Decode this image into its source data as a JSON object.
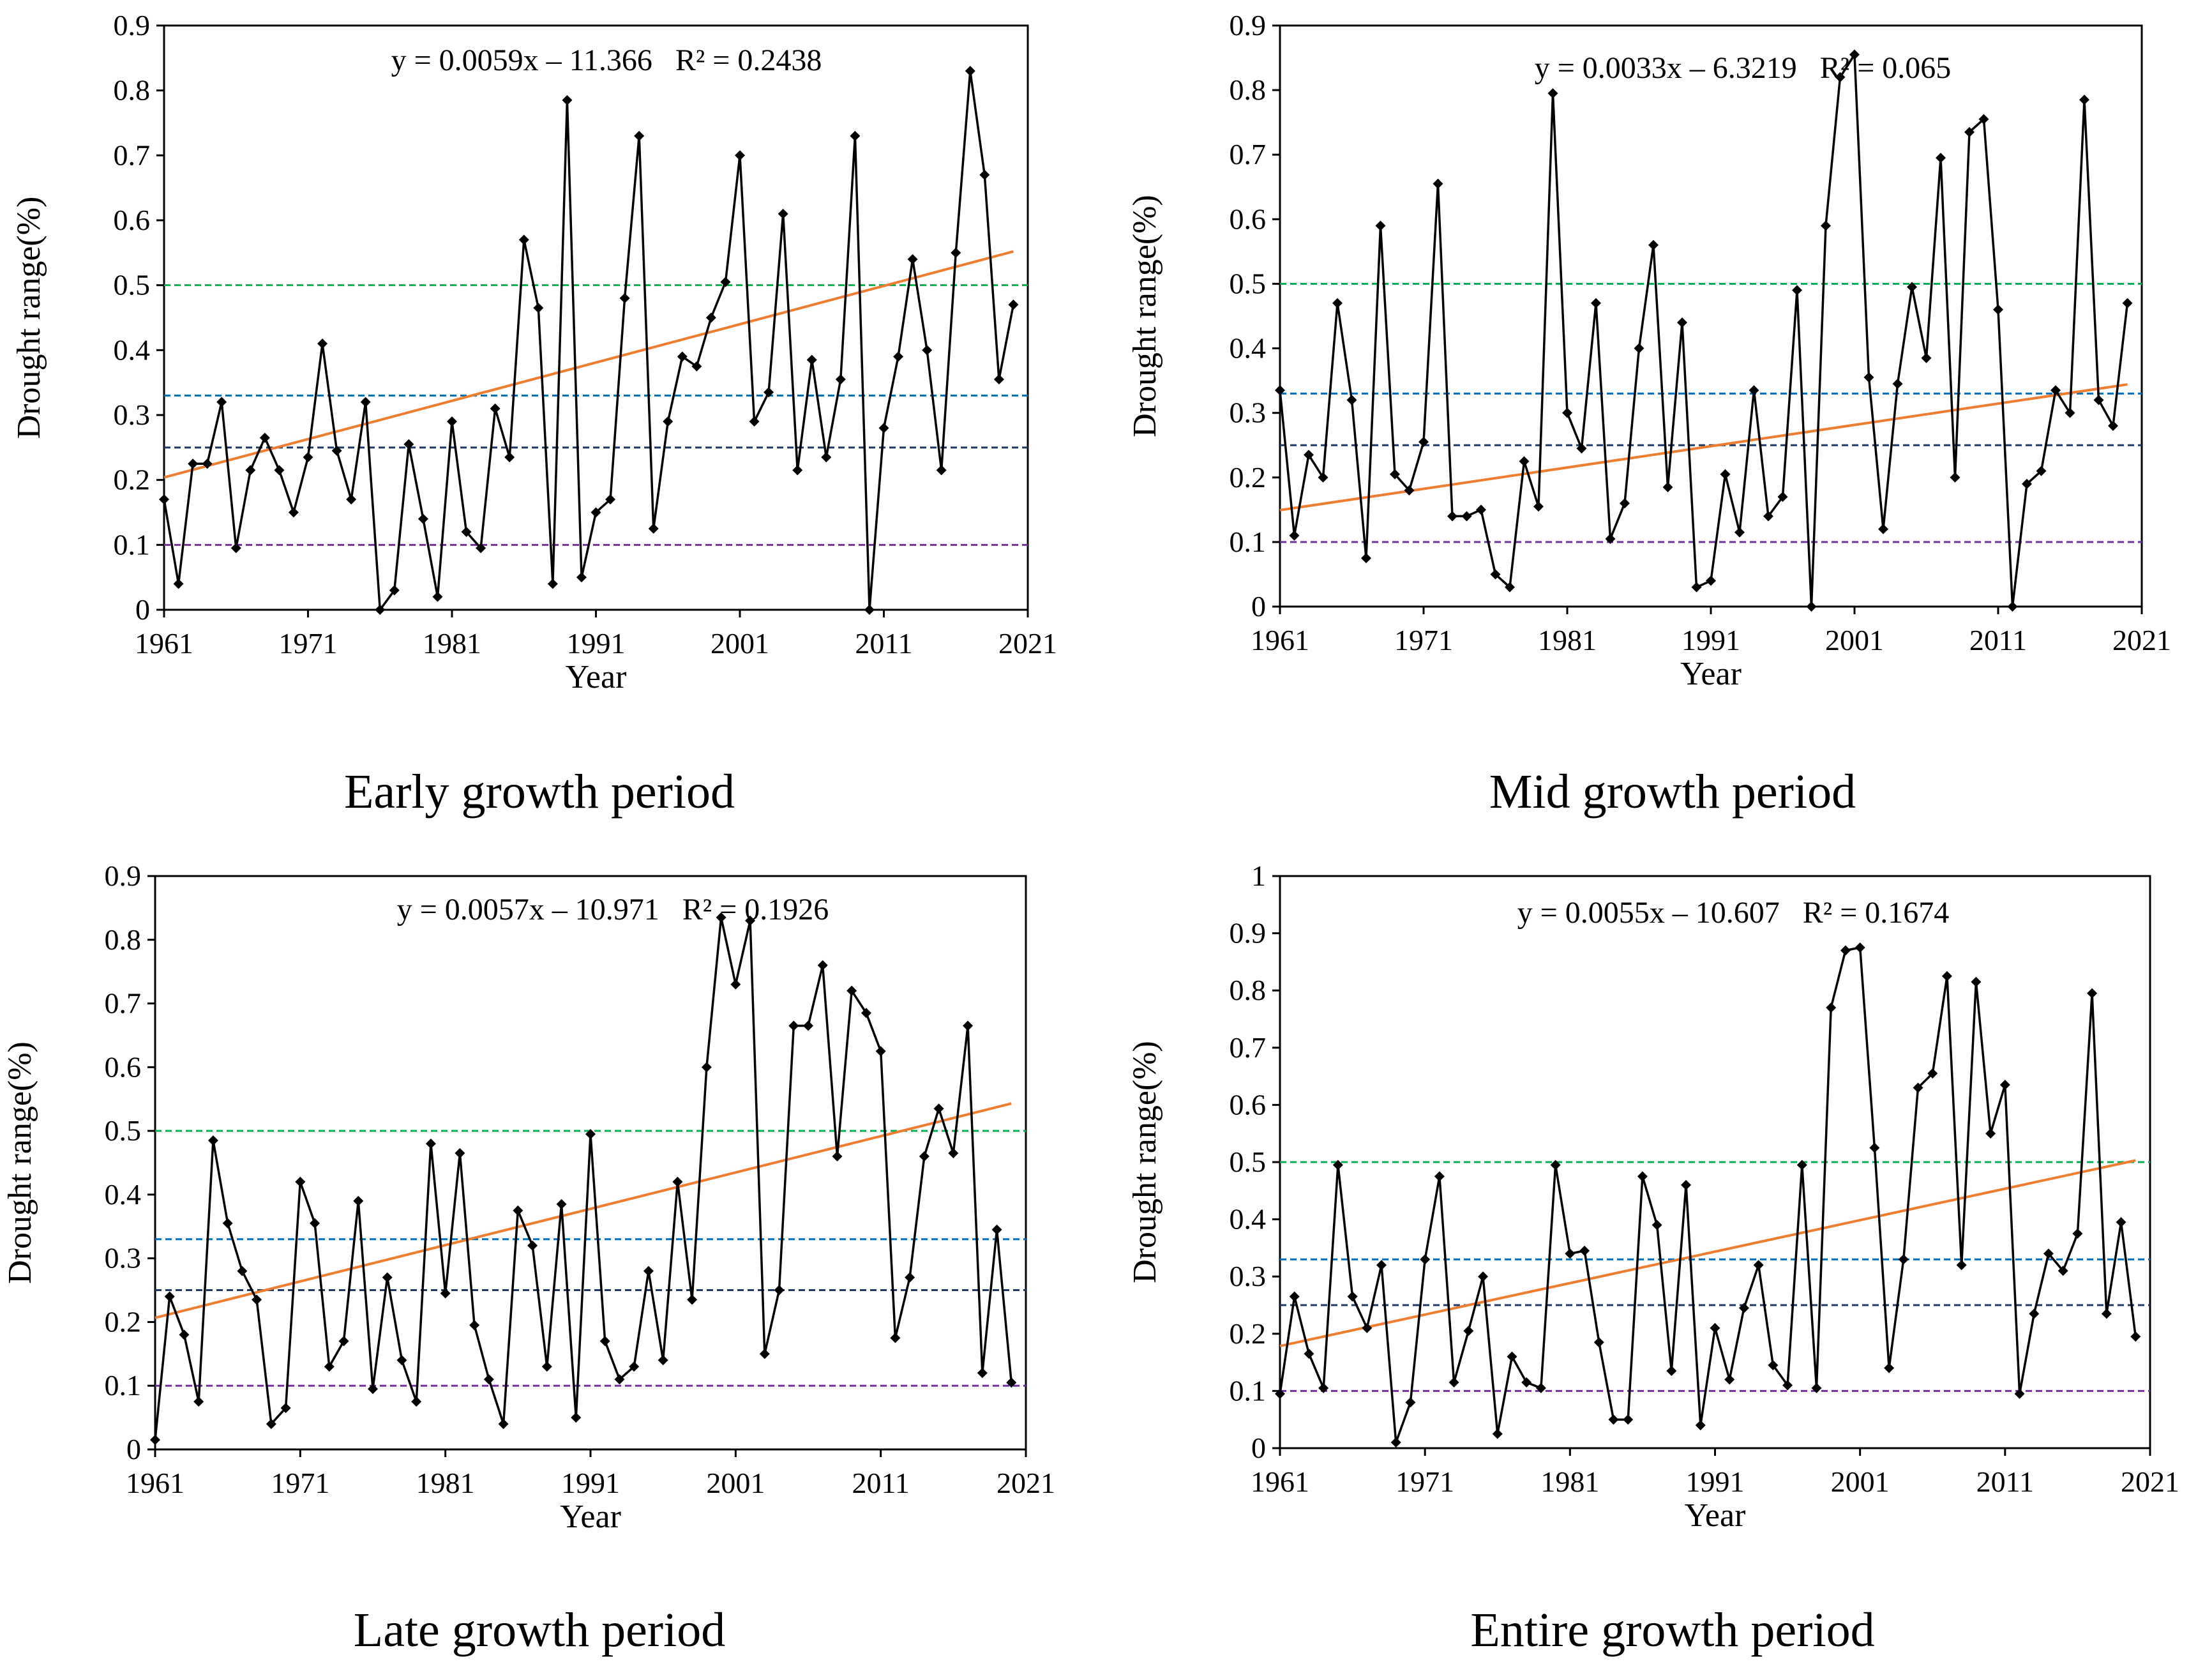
{
  "chart_data": [
    {
      "type": "line",
      "caption": "Early growth period",
      "xlabel": "Year",
      "ylabel": "Drought range(%)",
      "xlim": [
        1961,
        2021
      ],
      "ylim": [
        0,
        0.9
      ],
      "xticks": [
        "1961",
        "1971",
        "1981",
        "1991",
        "2001",
        "2011",
        "2021"
      ],
      "yticks": [
        "0",
        "0.1",
        "0.2",
        "0.3",
        "0.4",
        "0.5",
        "0.6",
        "0.7",
        "0.8",
        "0.9"
      ],
      "equation": "y = 0.0059x – 11.366   R² = 0.2438",
      "series": [
        {
          "name": "Drought range",
          "x_start": 1961,
          "values": [
            0.17,
            0.04,
            0.225,
            0.225,
            0.32,
            0.095,
            0.215,
            0.265,
            0.215,
            0.15,
            0.235,
            0.41,
            0.245,
            0.17,
            0.32,
            0.0,
            0.03,
            0.255,
            0.14,
            0.02,
            0.29,
            0.12,
            0.095,
            0.31,
            0.235,
            0.57,
            0.465,
            0.04,
            0.785,
            0.05,
            0.15,
            0.17,
            0.48,
            0.73,
            0.125,
            0.29,
            0.39,
            0.375,
            0.45,
            0.505,
            0.7,
            0.29,
            0.335,
            0.61,
            0.215,
            0.385,
            0.235,
            0.355,
            0.73,
            0.0,
            0.28,
            0.39,
            0.54,
            0.4,
            0.215,
            0.55,
            0.83,
            0.67,
            0.355,
            0.47
          ]
        }
      ],
      "trendline": {
        "slope": 0.0059,
        "intercept": -11.366
      },
      "reference_lines": [
        {
          "value": 0.5,
          "color": "#00b050"
        },
        {
          "value": 0.33,
          "color": "#0070c0"
        },
        {
          "value": 0.25,
          "color": "#1f3864"
        },
        {
          "value": 0.1,
          "color": "#7030a0"
        }
      ],
      "colors": {
        "series": "#000000",
        "trend": "#ed7d31"
      }
    },
    {
      "type": "line",
      "caption": "Mid growth period",
      "xlabel": "Year",
      "ylabel": "Drought range(%)",
      "xlim": [
        1961,
        2021
      ],
      "ylim": [
        0,
        0.9
      ],
      "xticks": [
        "1961",
        "1971",
        "1981",
        "1991",
        "2001",
        "2011",
        "2021"
      ],
      "yticks": [
        "0",
        "0.1",
        "0.2",
        "0.3",
        "0.4",
        "0.5",
        "0.6",
        "0.7",
        "0.8",
        "0.9"
      ],
      "equation": "y = 0.0033x – 6.3219   R² = 0.065",
      "series": [
        {
          "name": "Drought range",
          "x_start": 1961,
          "values": [
            0.335,
            0.11,
            0.235,
            0.2,
            0.47,
            0.32,
            0.075,
            0.59,
            0.205,
            0.18,
            0.255,
            0.655,
            0.14,
            0.14,
            0.15,
            0.05,
            0.03,
            0.225,
            0.155,
            0.795,
            0.3,
            0.245,
            0.47,
            0.105,
            0.16,
            0.4,
            0.56,
            0.185,
            0.44,
            0.03,
            0.04,
            0.205,
            0.115,
            0.335,
            0.14,
            0.17,
            0.49,
            0.0,
            0.59,
            0.82,
            0.855,
            0.355,
            0.12,
            0.345,
            0.495,
            0.385,
            0.695,
            0.2,
            0.735,
            0.755,
            0.46,
            0.0,
            0.19,
            0.21,
            0.335,
            0.3,
            0.785,
            0.32,
            0.28,
            0.47
          ]
        }
      ],
      "trendline": {
        "slope": 0.0033,
        "intercept": -6.3219
      },
      "reference_lines": [
        {
          "value": 0.5,
          "color": "#00b050"
        },
        {
          "value": 0.33,
          "color": "#0070c0"
        },
        {
          "value": 0.25,
          "color": "#1f3864"
        },
        {
          "value": 0.1,
          "color": "#7030a0"
        }
      ],
      "colors": {
        "series": "#000000",
        "trend": "#ed7d31"
      }
    },
    {
      "type": "line",
      "caption": "Late growth period",
      "xlabel": "Year",
      "ylabel": "Drought range(%)",
      "xlim": [
        1961,
        2021
      ],
      "ylim": [
        0,
        0.9
      ],
      "xticks": [
        "1961",
        "1971",
        "1981",
        "1991",
        "2001",
        "2011",
        "2021"
      ],
      "yticks": [
        "0",
        "0.1",
        "0.2",
        "0.3",
        "0.4",
        "0.5",
        "0.6",
        "0.7",
        "0.8",
        "0.9"
      ],
      "equation": "y = 0.0057x – 10.971   R² = 0.1926",
      "series": [
        {
          "name": "Drought range",
          "x_start": 1961,
          "values": [
            0.015,
            0.24,
            0.18,
            0.075,
            0.485,
            0.355,
            0.28,
            0.235,
            0.04,
            0.065,
            0.42,
            0.355,
            0.13,
            0.17,
            0.39,
            0.095,
            0.27,
            0.14,
            0.075,
            0.48,
            0.245,
            0.465,
            0.195,
            0.11,
            0.04,
            0.375,
            0.32,
            0.13,
            0.385,
            0.05,
            0.495,
            0.17,
            0.11,
            0.13,
            0.28,
            0.14,
            0.42,
            0.235,
            0.6,
            0.835,
            0.73,
            0.83,
            0.15,
            0.25,
            0.665,
            0.665,
            0.76,
            0.46,
            0.72,
            0.685,
            0.625,
            0.175,
            0.27,
            0.46,
            0.535,
            0.465,
            0.665,
            0.12,
            0.345,
            0.105
          ]
        }
      ],
      "trendline": {
        "slope": 0.0057,
        "intercept": -10.971
      },
      "reference_lines": [
        {
          "value": 0.5,
          "color": "#00b050"
        },
        {
          "value": 0.33,
          "color": "#0070c0"
        },
        {
          "value": 0.25,
          "color": "#1f3864"
        },
        {
          "value": 0.1,
          "color": "#7030a0"
        }
      ],
      "colors": {
        "series": "#000000",
        "trend": "#ed7d31"
      }
    },
    {
      "type": "line",
      "caption": "Entire growth period",
      "xlabel": "Year",
      "ylabel": "Drought range(%)",
      "xlim": [
        1961,
        2021
      ],
      "ylim": [
        0,
        1.0
      ],
      "xticks": [
        "1961",
        "1971",
        "1981",
        "1991",
        "2001",
        "2011",
        "2021"
      ],
      "yticks": [
        "0",
        "0.1",
        "0.2",
        "0.3",
        "0.4",
        "0.5",
        "0.6",
        "0.7",
        "0.8",
        "0.9",
        "1"
      ],
      "equation": "y = 0.0055x – 10.607   R² = 0.1674",
      "series": [
        {
          "name": "Drought range",
          "x_start": 1961,
          "values": [
            0.095,
            0.265,
            0.165,
            0.105,
            0.495,
            0.265,
            0.21,
            0.32,
            0.01,
            0.08,
            0.33,
            0.475,
            0.115,
            0.205,
            0.3,
            0.025,
            0.16,
            0.115,
            0.105,
            0.495,
            0.34,
            0.345,
            0.185,
            0.05,
            0.05,
            0.475,
            0.39,
            0.135,
            0.46,
            0.04,
            0.21,
            0.12,
            0.245,
            0.32,
            0.145,
            0.11,
            0.495,
            0.105,
            0.77,
            0.87,
            0.875,
            0.525,
            0.14,
            0.33,
            0.63,
            0.655,
            0.825,
            0.32,
            0.815,
            0.55,
            0.635,
            0.095,
            0.235,
            0.34,
            0.31,
            0.375,
            0.795,
            0.235,
            0.395,
            0.195
          ]
        }
      ],
      "trendline": {
        "slope": 0.0055,
        "intercept": -10.607
      },
      "reference_lines": [
        {
          "value": 0.5,
          "color": "#00b050"
        },
        {
          "value": 0.33,
          "color": "#0070c0"
        },
        {
          "value": 0.25,
          "color": "#1f3864"
        },
        {
          "value": 0.1,
          "color": "#7030a0"
        }
      ],
      "colors": {
        "series": "#000000",
        "trend": "#ed7d31"
      }
    }
  ]
}
